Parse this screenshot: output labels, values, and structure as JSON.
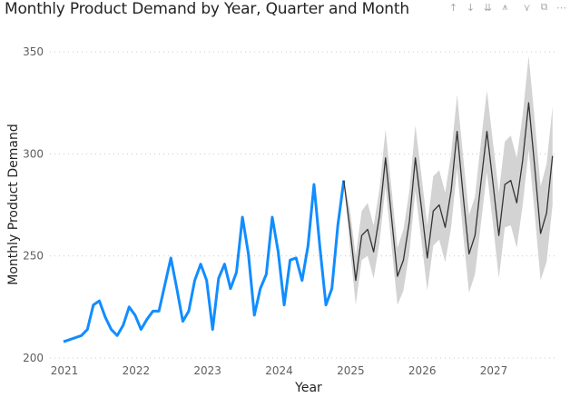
{
  "title": "Monthly Product Demand by Year, Quarter and Month",
  "toolbar": [
    {
      "name": "drill-up-icon",
      "glyph": "↑"
    },
    {
      "name": "drill-down-icon",
      "glyph": "↓"
    },
    {
      "name": "next-level-icon",
      "glyph": "⇊"
    },
    {
      "name": "expand-hierarchy-icon",
      "glyph": "⩚"
    },
    {
      "name": "filter-icon",
      "glyph": "⋎"
    },
    {
      "name": "focus-mode-icon",
      "glyph": "⧉"
    },
    {
      "name": "more-options-icon",
      "glyph": "⋯"
    }
  ],
  "colors": {
    "actual": "#118DFF",
    "forecast": "#333333",
    "band": "#D3D3D3",
    "grid": "#C8C8C8"
  },
  "chart_data": {
    "type": "line",
    "title": "Monthly Product Demand by Year, Quarter and Month",
    "xlabel": "Year",
    "ylabel": "Monthly Product Demand",
    "ylim": [
      200,
      350
    ],
    "yticks": [
      "200",
      "250",
      "300",
      "350"
    ],
    "xticks": [
      "2021",
      "2022",
      "2023",
      "2024",
      "2025",
      "2026",
      "2027"
    ],
    "grid": "horizontal dotted",
    "x_first_month": "2021-01",
    "series": [
      {
        "kind": "actual",
        "start_month": "2021-01",
        "values": [
          208,
          209,
          210,
          211,
          214,
          226,
          228,
          220,
          214,
          211,
          216,
          225,
          221,
          214,
          219,
          223,
          223,
          236,
          249,
          234,
          218,
          223,
          238,
          246,
          238,
          214,
          239,
          246,
          234,
          242,
          269,
          251,
          221,
          234,
          241,
          269,
          252,
          226,
          248,
          249,
          238,
          255,
          285,
          254,
          226,
          234,
          265,
          287
        ]
      },
      {
        "kind": "forecast",
        "start_month": "2024-12",
        "values": [
          287,
          264,
          238,
          260,
          263,
          252,
          270,
          298,
          269,
          240,
          248,
          267,
          298,
          274,
          249,
          272,
          275,
          264,
          282,
          311,
          280,
          251,
          260,
          286,
          311,
          286,
          260,
          285,
          287,
          276,
          297,
          325,
          294,
          261,
          271,
          299
        ],
        "upper": [
          287,
          273,
          250,
          272,
          276,
          265,
          283,
          312,
          283,
          254,
          263,
          282,
          314,
          290,
          265,
          289,
          292,
          281,
          300,
          329,
          299,
          270,
          279,
          306,
          331,
          306,
          281,
          306,
          309,
          298,
          319,
          348,
          317,
          284,
          295,
          323
        ],
        "lower": [
          287,
          255,
          226,
          248,
          250,
          239,
          257,
          284,
          255,
          226,
          233,
          252,
          282,
          258,
          233,
          255,
          258,
          247,
          264,
          293,
          261,
          232,
          241,
          266,
          291,
          266,
          239,
          264,
          265,
          254,
          275,
          302,
          271,
          238,
          247,
          275
        ]
      }
    ]
  }
}
